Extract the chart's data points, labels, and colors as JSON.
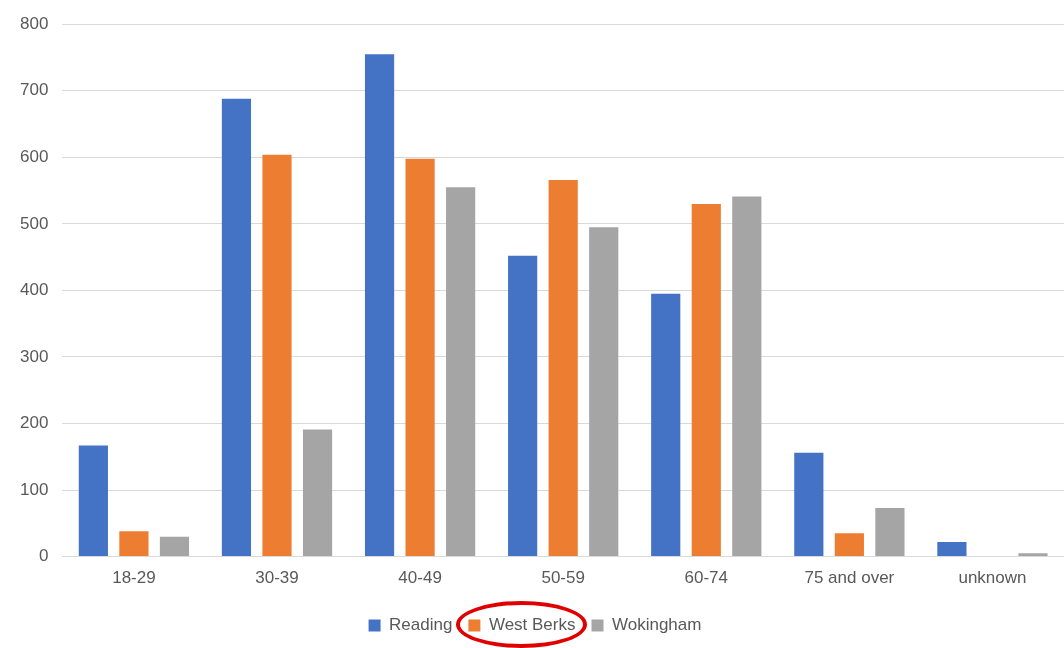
{
  "chart_data": {
    "type": "bar",
    "categories": [
      "18-29",
      "30-39",
      "40-49",
      "50-59",
      "60-74",
      "75 and over",
      "unknown"
    ],
    "series": [
      {
        "name": "Reading",
        "color": "#4472c4",
        "values": [
          167,
          688,
          755,
          452,
          395,
          156,
          22
        ]
      },
      {
        "name": "West Berks",
        "color": "#ed7d31",
        "values": [
          38,
          604,
          598,
          566,
          530,
          35,
          0
        ]
      },
      {
        "name": "Wokingham",
        "color": "#a5a5a5",
        "values": [
          30,
          191,
          555,
          495,
          541,
          73,
          5
        ]
      }
    ],
    "ylim": [
      0,
      800
    ],
    "yticks": [
      0,
      100,
      200,
      300,
      400,
      500,
      600,
      700,
      800
    ],
    "grid": "y",
    "legend": "bottom"
  }
}
